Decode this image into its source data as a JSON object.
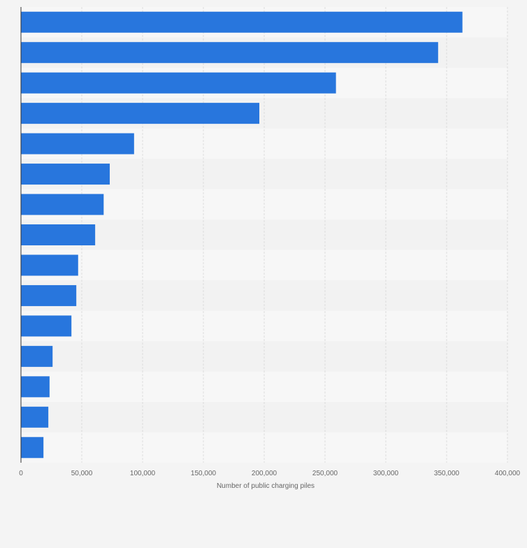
{
  "chart_data": {
    "type": "bar",
    "orientation": "horizontal",
    "categories": [
      "",
      "",
      "",
      "",
      "",
      "",
      "",
      "",
      "",
      "",
      "",
      "",
      "",
      "",
      ""
    ],
    "values": [
      363000,
      343000,
      259000,
      196000,
      93000,
      73000,
      68000,
      61000,
      47000,
      45500,
      41500,
      26000,
      23500,
      22500,
      18500
    ],
    "title": "",
    "xlabel": "Number of public charging piles",
    "ylabel": "",
    "xlim": [
      0,
      400000
    ],
    "xticks": [
      0,
      50000,
      100000,
      150000,
      200000,
      250000,
      300000,
      350000,
      400000
    ],
    "xtick_labels": [
      "0",
      "50,000",
      "100,000",
      "150,000",
      "200,000",
      "250,000",
      "300,000",
      "350,000",
      "400,000"
    ],
    "grid": true,
    "colors": {
      "bar": "#2876dd",
      "background": "#f4f4f4",
      "band_light": "#f7f7f7",
      "band_dark": "#f2f2f2",
      "grid": "#dcdcdc",
      "axis": "#333333",
      "text": "#666666"
    }
  }
}
